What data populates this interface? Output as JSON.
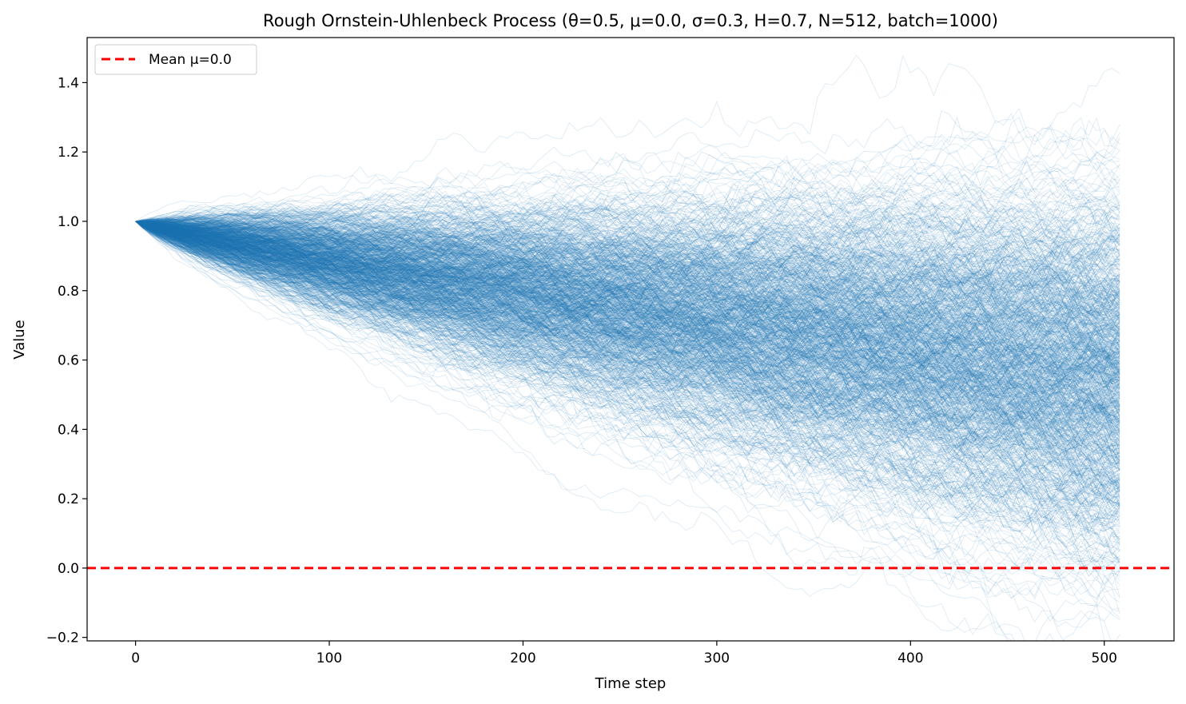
{
  "chart_data": {
    "type": "line",
    "title": "Rough Ornstein-Uhlenbeck Process (θ=0.5, μ=0.0, σ=0.3, H=0.7, N=512, batch=1000)",
    "xlabel": "Time step",
    "ylabel": "Value",
    "xlim": [
      -25,
      536
    ],
    "ylim": [
      -0.21,
      1.53
    ],
    "x_ticks": [
      0,
      100,
      200,
      300,
      400,
      500
    ],
    "y_ticks": [
      -0.2,
      0.0,
      0.2,
      0.4,
      0.6,
      0.8,
      1.0,
      1.2,
      1.4
    ],
    "y_tick_labels": [
      "−0.2",
      "0.0",
      "0.2",
      "0.4",
      "0.6",
      "0.8",
      "1.0",
      "1.2",
      "1.4"
    ],
    "grid": false,
    "legend": {
      "placement": "top-left",
      "entries": [
        {
          "label": "Mean μ=0.0",
          "color": "#ff0000",
          "style": "dashed"
        }
      ]
    },
    "series_color": "#1f77b4",
    "paths": {
      "count": 1000,
      "steps": 512,
      "start_value": 1.0,
      "end_spread": [
        -0.13,
        1.44
      ],
      "theta": 0.5,
      "mu": 0.0,
      "sigma": 0.3,
      "hurst": 0.7
    },
    "mean_line": {
      "value": 0.0,
      "color": "#ff0000"
    }
  }
}
